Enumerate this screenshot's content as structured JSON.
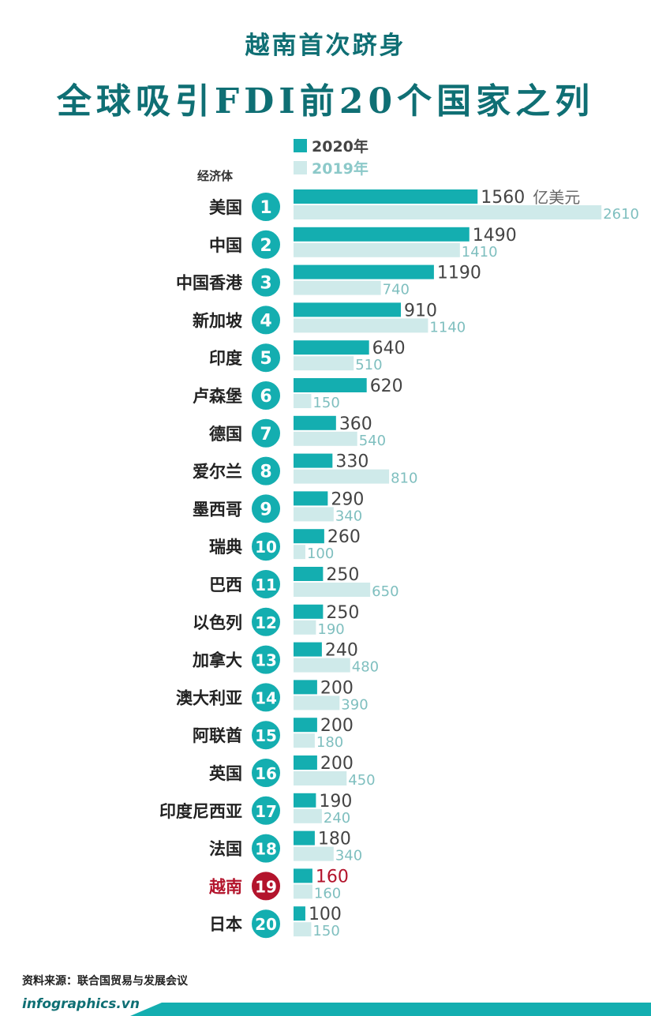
{
  "title": {
    "line1": "越南首次跻身",
    "line2": "全球吸引FDI前20个国家之列"
  },
  "legend": [
    {
      "label": "2020年",
      "color": "#14aeb0",
      "text_color": "#444444"
    },
    {
      "label": "2019年",
      "color": "#cfeaea",
      "text_color": "#8cc9c9"
    }
  ],
  "column_header": "经济体",
  "source": "资料来源：联合国贸易与发展会议",
  "footer": "infographics.vn",
  "colors": {
    "bar2020": "#14aeb0",
    "bar2019": "#cfeaea",
    "badge": "#14aeb0",
    "highlight": "#b3142c",
    "label2020": "#444444",
    "label2019": "#7fbfbf"
  },
  "chart_data": {
    "type": "bar",
    "orientation": "horizontal",
    "unit_label": "亿美元",
    "categories": [
      "美国",
      "中国",
      "中国香港",
      "新加坡",
      "印度",
      "卢森堡",
      "德国",
      "爱尔兰",
      "墨西哥",
      "瑞典",
      "巴西",
      "以色列",
      "加拿大",
      "澳大利亚",
      "阿联酋",
      "英国",
      "印度尼西亚",
      "法国",
      "越南",
      "日本"
    ],
    "ranks": [
      "1",
      "2",
      "3",
      "4",
      "5",
      "6",
      "7",
      "8",
      "9",
      "10",
      "11",
      "12",
      "13",
      "14",
      "15",
      "16",
      "17",
      "18",
      "19",
      "20"
    ],
    "highlight": "越南",
    "series": [
      {
        "name": "2020年",
        "values": [
          1560,
          1490,
          1190,
          910,
          640,
          620,
          360,
          330,
          290,
          260,
          250,
          250,
          240,
          200,
          200,
          200,
          190,
          180,
          160,
          100
        ]
      },
      {
        "name": "2019年",
        "values": [
          2610,
          1410,
          740,
          1140,
          510,
          150,
          540,
          810,
          340,
          100,
          650,
          190,
          480,
          390,
          180,
          450,
          240,
          340,
          160,
          150
        ]
      }
    ]
  }
}
